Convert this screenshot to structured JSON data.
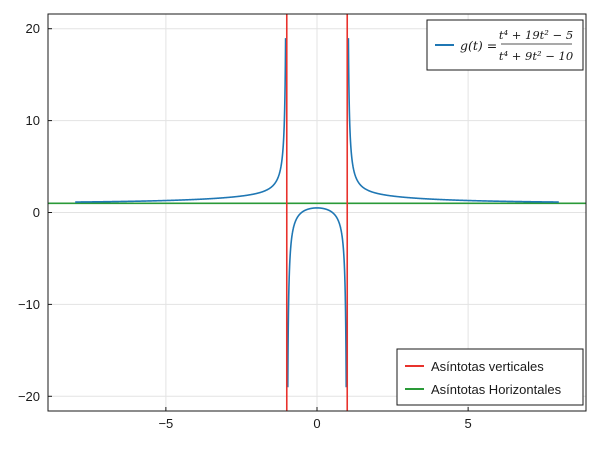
{
  "chart_data": {
    "type": "line",
    "title": "",
    "xlabel": "",
    "ylabel": "",
    "xlim": [
      -8.9,
      8.9
    ],
    "ylim": [
      -21.6,
      21.6
    ],
    "xticks": [
      -5,
      0,
      5
    ],
    "yticks": [
      -20,
      -10,
      0,
      10,
      20
    ],
    "xtick_labels": [
      "−5",
      "0",
      "5"
    ],
    "ytick_labels": [
      "−20",
      "−10",
      "0",
      "10",
      "20"
    ],
    "grid": true,
    "function": {
      "name": "g(t)",
      "legend_label": "g(t) = (t⁴ + 19t² − 5) / (t⁴ + 9t² − 10)",
      "legend_lhs": "g(t) =",
      "legend_numerator": "t⁴ + 19t² − 5",
      "legend_denominator": "t⁴ + 9t² − 10",
      "color": "#1f77b4",
      "domain": [
        -8,
        8
      ],
      "clip": [
        -20,
        20
      ]
    },
    "vertical_asymptotes": {
      "name": "Asíntotas verticales",
      "x": [
        -1,
        1
      ],
      "color": "#e8322c"
    },
    "horizontal_asymptotes": {
      "name": "Asíntotas Horizontales",
      "y": [
        1
      ],
      "color": "#2a9a38"
    },
    "legend_top": "top-right",
    "legend_bottom": "bottom-right"
  }
}
